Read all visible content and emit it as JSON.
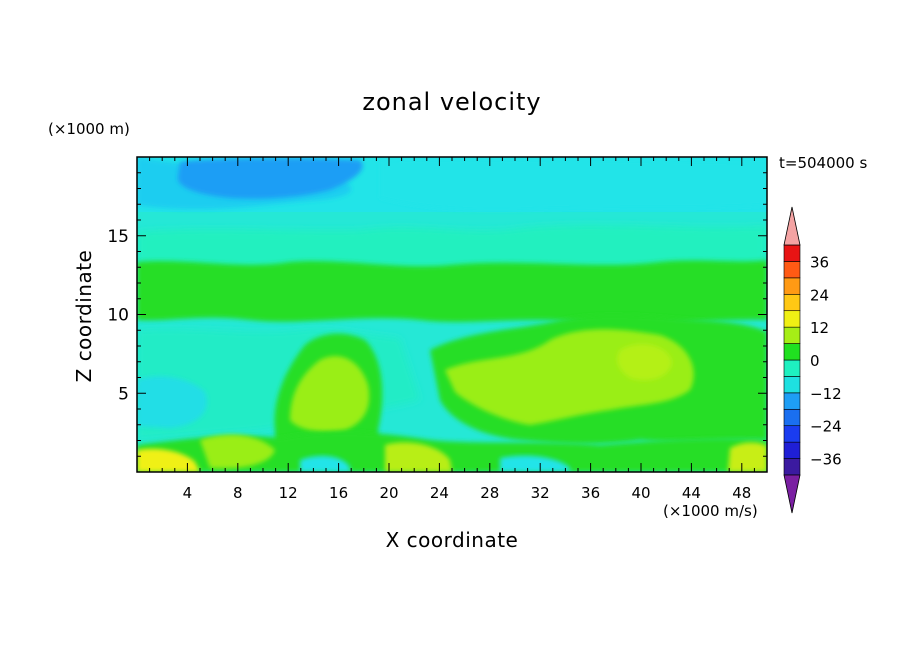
{
  "chart_data": {
    "type": "heatmap",
    "title": "zonal velocity",
    "xlabel": "X coordinate",
    "ylabel": "Z coordinate",
    "y_unit": "(×1000 m)",
    "time_label": "t=504000 s",
    "colorbar_unit": "(×1000 m/s)",
    "xlim": [
      0,
      50
    ],
    "ylim": [
      0,
      20
    ],
    "x_ticks": [
      4,
      8,
      12,
      16,
      20,
      24,
      28,
      32,
      36,
      40,
      44,
      48
    ],
    "y_ticks": [
      5,
      10,
      15
    ],
    "colorbar": {
      "levels": [
        -42,
        -36,
        -30,
        -24,
        -18,
        -12,
        -6,
        0,
        6,
        12,
        18,
        24,
        30,
        36,
        42
      ],
      "tick_labels": [
        36,
        24,
        12,
        0,
        -12,
        -24,
        -36
      ],
      "colors": [
        "#7a1fa2",
        "#3b1aa0",
        "#1f1fd6",
        "#1a3cf0",
        "#1a6ff0",
        "#1e9ef5",
        "#1ee0e0",
        "#1ef0c0",
        "#20e020",
        "#a6ee16",
        "#f0f014",
        "#ffc814",
        "#ff9a14",
        "#ff5a14",
        "#e81414",
        "#f4a3a3"
      ],
      "extend": "both"
    },
    "field_summary": [
      {
        "region": "upper layer near z=18 (x 4-16)",
        "value_range": [
          -18,
          -12
        ]
      },
      {
        "region": "upper troposphere z 13-20",
        "value_range": [
          -12,
          -6
        ]
      },
      {
        "region": "band near z 9-13",
        "value_range": [
          0,
          6
        ]
      },
      {
        "region": "blob centred x=15, z=4.5",
        "value_range": [
          6,
          12
        ]
      },
      {
        "region": "broad area x 26-48, z 3-9",
        "value_range": [
          0,
          12
        ]
      },
      {
        "region": "surface x 0-2, z 0-1",
        "value_range": [
          12,
          18
        ]
      },
      {
        "region": "surface x 20-24, z 0-1",
        "value_range": [
          6,
          12
        ]
      },
      {
        "region": "surface x 47-50, z 0-1.5",
        "value_range": [
          6,
          12
        ]
      },
      {
        "region": "lower background z 0-9",
        "value_range": [
          -12,
          0
        ]
      }
    ]
  }
}
